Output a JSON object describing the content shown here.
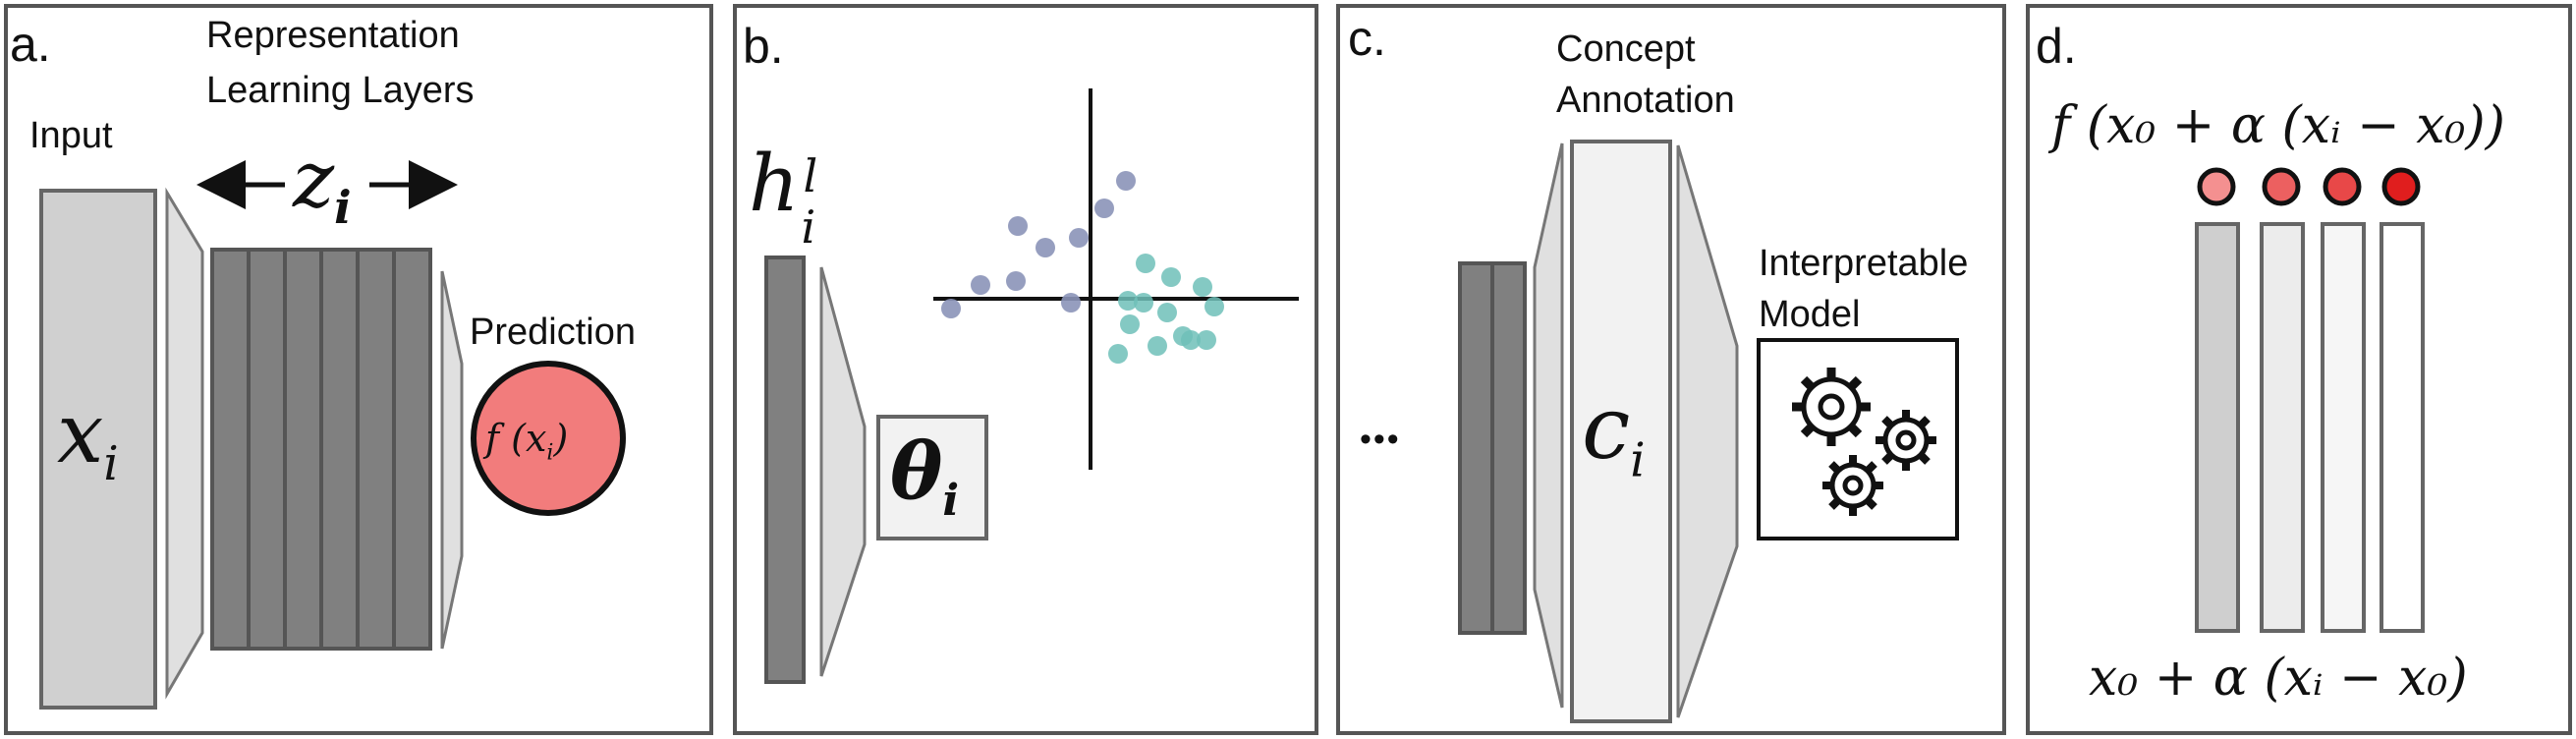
{
  "panels": [
    {
      "letter": "a."
    },
    {
      "letter": "b."
    },
    {
      "letter": "c."
    },
    {
      "letter": "d."
    }
  ],
  "panel_a": {
    "input_label": "Input",
    "layers_label_line1": "Representation",
    "layers_label_line2": "Learning Layers",
    "z_symbol": "z",
    "z_sub": "i",
    "x_symbol": "x",
    "x_sub": "i",
    "prediction_label": "Prediction",
    "prediction_formula": "f (x",
    "prediction_sub": "i",
    "prediction_close": ")",
    "prediction_color": "#f27c7c"
  },
  "panel_b": {
    "h_symbol": "h",
    "h_sup": "l",
    "h_sub": "i",
    "theta_symbol": "θ",
    "theta_sub": "i",
    "cluster_colors": [
      "#8b93b8",
      "#6fbfb8"
    ]
  },
  "panel_c": {
    "ellipsis": "•••",
    "concept_line1": "Concept",
    "concept_line2": "Annotation",
    "c_symbol": "c",
    "c_sub": "i",
    "interp_line1": "Interpretable",
    "interp_line2": "Model",
    "gears_icon": "gears-icon"
  },
  "panel_d": {
    "top_formula": "f (x₀ + α (xᵢ − x₀))",
    "bottom_formula": "x₀ + α (xᵢ − x₀)",
    "dot_colors": [
      "#f49090",
      "#ec6060",
      "#e84848",
      "#e01e1e"
    ]
  }
}
